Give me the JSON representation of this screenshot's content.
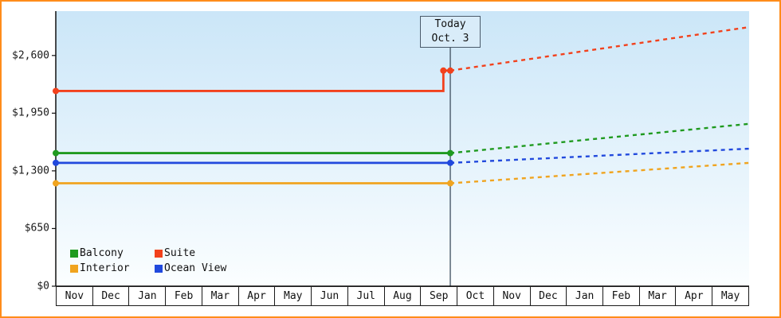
{
  "colors": {
    "frame_border": "#ff8c1a",
    "plot_bg_top": "#cbe6f8",
    "plot_bg_bottom": "#fbfeff",
    "axis": "#111111",
    "today_line": "#4a5a6a",
    "today_box_bg": "#d9ecf9"
  },
  "chart_data": {
    "type": "line",
    "title": "",
    "xlabel": "",
    "ylabel": "",
    "grid": false,
    "legend_position": "bottom-left",
    "categories": [
      "Nov",
      "Dec",
      "Jan",
      "Feb",
      "Mar",
      "Apr",
      "May",
      "Jun",
      "Jul",
      "Aug",
      "Sep",
      "Oct",
      "Nov",
      "Dec",
      "Jan",
      "Feb",
      "Mar",
      "Apr",
      "May"
    ],
    "y_ticks": [
      {
        "label": "$0",
        "value": 0
      },
      {
        "label": "$650",
        "value": 650
      },
      {
        "label": "$1,300",
        "value": 1300
      },
      {
        "label": "$1,950",
        "value": 1950
      },
      {
        "label": "$2,600",
        "value": 2600
      }
    ],
    "ylim": [
      0,
      3100
    ],
    "today": {
      "label_line1": "Today",
      "label_line2": "Oct. 3",
      "x_fraction": 0.569
    },
    "series": [
      {
        "name": "Balcony",
        "color": "#1f9a1f",
        "past_price": 1500,
        "today_price": 1500,
        "forecast_end_price": 1830
      },
      {
        "name": "Suite",
        "color": "#f2411c",
        "past_price": 2200,
        "step": {
          "x_fraction": 0.559,
          "price": 2430
        },
        "today_price": 2430,
        "forecast_end_price": 2920
      },
      {
        "name": "Interior",
        "color": "#f0a41f",
        "past_price": 1160,
        "today_price": 1160,
        "forecast_end_price": 1390
      },
      {
        "name": "Ocean View",
        "color": "#2149dd",
        "past_price": 1390,
        "today_price": 1390,
        "forecast_end_price": 1550
      }
    ],
    "legend_order": [
      "Balcony",
      "Suite",
      "Interior",
      "Ocean View"
    ]
  }
}
